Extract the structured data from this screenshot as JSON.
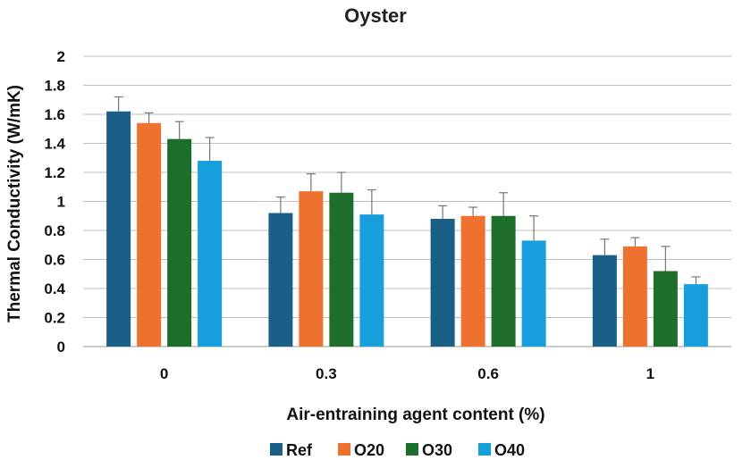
{
  "chart_data": {
    "type": "bar",
    "title": "Oyster",
    "xlabel": "Air-entraining agent content (%)",
    "ylabel": "Thermal Conductivity (W/mK)",
    "ylim": [
      0,
      2
    ],
    "yticks": [
      "0",
      "0.2",
      "0.4",
      "0.6",
      "0.8",
      "1",
      "1.2",
      "1.4",
      "1.6",
      "1.8",
      "2"
    ],
    "categories": [
      "0",
      "0.3",
      "0.6",
      "1"
    ],
    "grid": true,
    "legend_position": "bottom",
    "series": [
      {
        "name": "Ref",
        "color": "#1a5f85",
        "values": [
          1.62,
          0.92,
          0.88,
          0.63
        ],
        "errors": [
          0.1,
          0.11,
          0.09,
          0.11
        ]
      },
      {
        "name": "O20",
        "color": "#ed7230",
        "values": [
          1.54,
          1.07,
          0.9,
          0.69
        ],
        "errors": [
          0.07,
          0.12,
          0.06,
          0.06
        ]
      },
      {
        "name": "O30",
        "color": "#1e6e2b",
        "values": [
          1.43,
          1.06,
          0.9,
          0.52
        ],
        "errors": [
          0.12,
          0.14,
          0.16,
          0.17
        ]
      },
      {
        "name": "O40",
        "color": "#179fdb",
        "values": [
          1.28,
          0.91,
          0.73,
          0.43
        ],
        "errors": [
          0.16,
          0.17,
          0.17,
          0.05
        ]
      }
    ]
  }
}
